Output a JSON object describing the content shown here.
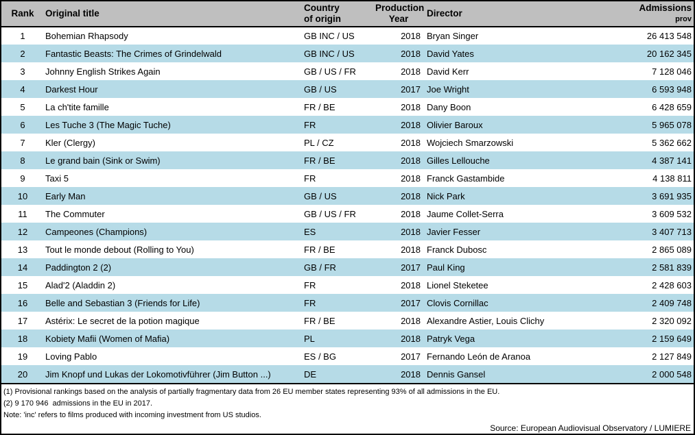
{
  "colors": {
    "header_bg": "#bfbfbf",
    "stripe_blue": "#b6dbe7",
    "border": "#000000",
    "text": "#000000"
  },
  "table": {
    "headers": {
      "rank": "Rank",
      "title": "Original title",
      "country_line1": "Country",
      "country_line2": "of origin",
      "year_line1": "Production",
      "year_line2": "Year",
      "director": "Director",
      "admissions_line1": "Admissions",
      "admissions_line2": "prov"
    }
  },
  "chart_data": {
    "type": "table",
    "title": "",
    "columns": [
      "Rank",
      "Original title",
      "Country of origin",
      "Production Year",
      "Director",
      "Admissions (prov)"
    ],
    "rows": [
      {
        "rank": "1",
        "title": "Bohemian Rhapsody",
        "country": "GB INC / US",
        "year": "2018",
        "director": "Bryan Singer",
        "admissions": "26 413 548"
      },
      {
        "rank": "2",
        "title": "Fantastic Beasts: The Crimes of Grindelwald",
        "country": "GB INC / US",
        "year": "2018",
        "director": "David Yates",
        "admissions": "20 162 345"
      },
      {
        "rank": "3",
        "title": "Johnny English Strikes Again",
        "country": "GB / US / FR",
        "year": "2018",
        "director": "David Kerr",
        "admissions": "7 128 046"
      },
      {
        "rank": "4",
        "title": "Darkest Hour",
        "country": "GB / US",
        "year": "2017",
        "director": "Joe Wright",
        "admissions": "6 593 948"
      },
      {
        "rank": "5",
        "title": "La ch'tite famille",
        "country": "FR / BE",
        "year": "2018",
        "director": "Dany Boon",
        "admissions": "6 428 659"
      },
      {
        "rank": "6",
        "title": "Les Tuche 3 (The Magic Tuche)",
        "country": "FR",
        "year": "2018",
        "director": "Olivier Baroux",
        "admissions": "5 965 078"
      },
      {
        "rank": "7",
        "title": "Kler (Clergy)",
        "country": "PL / CZ",
        "year": "2018",
        "director": "Wojciech Smarzowski",
        "admissions": "5 362 662"
      },
      {
        "rank": "8",
        "title": "Le grand bain (Sink or Swim)",
        "country": "FR / BE",
        "year": "2018",
        "director": "Gilles Lellouche",
        "admissions": "4 387 141"
      },
      {
        "rank": "9",
        "title": "Taxi 5",
        "country": "FR",
        "year": "2018",
        "director": "Franck Gastambide",
        "admissions": "4 138 811"
      },
      {
        "rank": "10",
        "title": "Early Man",
        "country": "GB / US",
        "year": "2018",
        "director": "Nick Park",
        "admissions": "3 691 935"
      },
      {
        "rank": "11",
        "title": "The Commuter",
        "country": "GB / US / FR",
        "year": "2018",
        "director": "Jaume Collet-Serra",
        "admissions": "3 609 532"
      },
      {
        "rank": "12",
        "title": "Campeones (Champions)",
        "country": "ES",
        "year": "2018",
        "director": "Javier Fesser",
        "admissions": "3 407 713"
      },
      {
        "rank": "13",
        "title": "Tout le monde debout (Rolling to You)",
        "country": "FR / BE",
        "year": "2018",
        "director": "Franck Dubosc",
        "admissions": "2 865 089"
      },
      {
        "rank": "14",
        "title": "Paddington 2 (2)",
        "country": "GB / FR",
        "year": "2017",
        "director": "Paul King",
        "admissions": "2 581 839"
      },
      {
        "rank": "15",
        "title": "Alad'2 (Aladdin 2)",
        "country": "FR",
        "year": "2018",
        "director": "Lionel Steketee",
        "admissions": "2 428 603"
      },
      {
        "rank": "16",
        "title": "Belle and Sebastian 3 (Friends for Life)",
        "country": "FR",
        "year": "2017",
        "director": "Clovis Cornillac",
        "admissions": "2 409 748"
      },
      {
        "rank": "17",
        "title": "Astérix: Le secret de la potion magique",
        "country": "FR / BE",
        "year": "2018",
        "director": "Alexandre Astier, Louis Clichy",
        "admissions": "2 320 092"
      },
      {
        "rank": "18",
        "title": "Kobiety Mafii (Women of Mafia)",
        "country": "PL",
        "year": "2018",
        "director": "Patryk Vega",
        "admissions": "2 159 649"
      },
      {
        "rank": "19",
        "title": "Loving Pablo",
        "country": "ES / BG",
        "year": "2017",
        "director": "Fernando León de Aranoa",
        "admissions": "2 127 849"
      },
      {
        "rank": "20",
        "title": "Jim Knopf und Lukas der Lokomotivführer (Jim Button ...)",
        "country": "DE",
        "year": "2018",
        "director": "Dennis Gansel",
        "admissions": "2 000 548"
      }
    ]
  },
  "footnotes": {
    "line1": "(1) Provisional rankings based on the analysis of partially fragmentary data from 26 EU member states representing 93% of all admissions in the EU.",
    "line2": "(2) 9 170 946  admissions in the EU in 2017.",
    "note": "Note: 'inc' refers to films produced with incoming investment from US studios.",
    "source": "Source: European Audiovisual Observatory / LUMIERE"
  }
}
